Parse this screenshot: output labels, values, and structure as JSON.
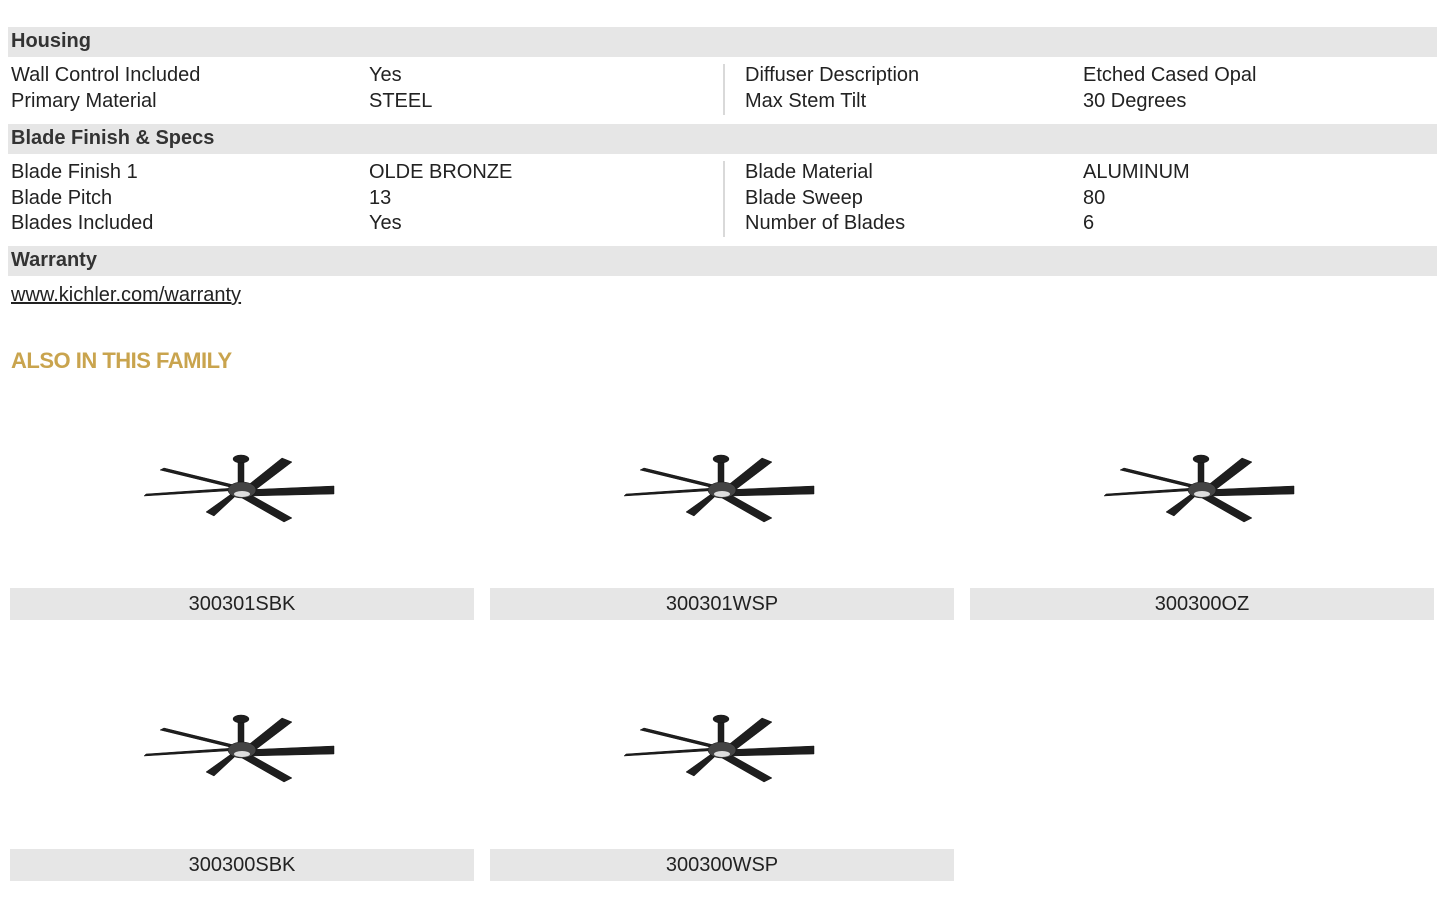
{
  "sections": {
    "housing": {
      "title": "Housing",
      "rows": [
        {
          "label": "Wall Control Included",
          "value": "Yes",
          "label2": "Diffuser Description",
          "value2": "Etched Cased Opal"
        },
        {
          "label": "Primary Material",
          "value": "STEEL",
          "label2": "Max Stem Tilt",
          "value2": "30 Degrees"
        }
      ]
    },
    "blade": {
      "title": "Blade Finish & Specs",
      "rows": [
        {
          "label": "Blade Finish 1",
          "value": "OLDE BRONZE",
          "label2": "Blade Material",
          "value2": "ALUMINUM"
        },
        {
          "label": "Blade Pitch",
          "value": "13",
          "label2": "Blade Sweep",
          "value2": "80"
        },
        {
          "label": "Blades Included",
          "value": "Yes",
          "label2": "Number of Blades",
          "value2": "6"
        }
      ]
    },
    "warranty": {
      "title": "Warranty",
      "link": "www.kichler.com/warranty"
    }
  },
  "family": {
    "title": "ALSO IN THIS FAMILY",
    "accent": "#c9a44e",
    "items": [
      {
        "sku": "300301SBK",
        "icon": "ceiling-fan-image"
      },
      {
        "sku": "300301WSP",
        "icon": "ceiling-fan-image"
      },
      {
        "sku": "300300OZ",
        "icon": "ceiling-fan-image"
      },
      {
        "sku": "300300SBK",
        "icon": "ceiling-fan-image"
      },
      {
        "sku": "300300WSP",
        "icon": "ceiling-fan-image"
      }
    ]
  }
}
